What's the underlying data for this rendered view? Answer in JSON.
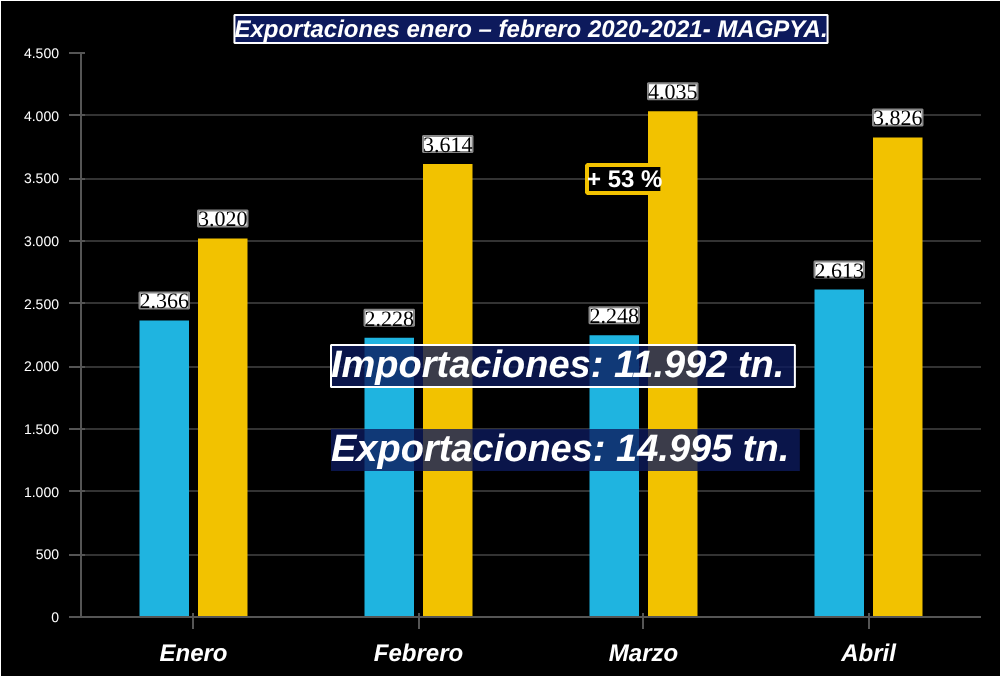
{
  "chart_data": {
    "type": "bar",
    "title": "Exportaciones enero – febrero 2020-2021- MAGPYA.",
    "categories": [
      "Enero",
      "Febrero",
      "Marzo",
      "Abril"
    ],
    "series": [
      {
        "color": "#1fb4e0",
        "values": [
          2366,
          2228,
          2248,
          2613
        ],
        "value_labels": [
          "2.366",
          "2.228",
          "2.248",
          "2.613"
        ]
      },
      {
        "color": "#f2c200",
        "values": [
          3020,
          3614,
          4035,
          3826
        ],
        "value_labels": [
          "3.020",
          "3.614",
          "4.035",
          "3.826"
        ]
      }
    ],
    "ylim": [
      0,
      4500
    ],
    "yticks": [
      0,
      {
        "value": 500,
        "label": "500"
      },
      {
        "value": 1000,
        "label": "1.000"
      },
      {
        "value": 1500,
        "label": "1.500"
      },
      {
        "value": 2000,
        "label": "2.000"
      },
      {
        "value": 2500,
        "label": "2.500"
      },
      {
        "value": 3000,
        "label": "3.000"
      },
      {
        "value": 3500,
        "label": "3.500"
      },
      {
        "value": 4000,
        "label": "4.000"
      },
      {
        "value": 4500,
        "label": "4.500"
      }
    ],
    "grid": "y",
    "annotations": [
      "+ 53 %",
      "Importaciones:  11.992 tn.",
      "Exportaciones:  14.995 tn."
    ]
  }
}
